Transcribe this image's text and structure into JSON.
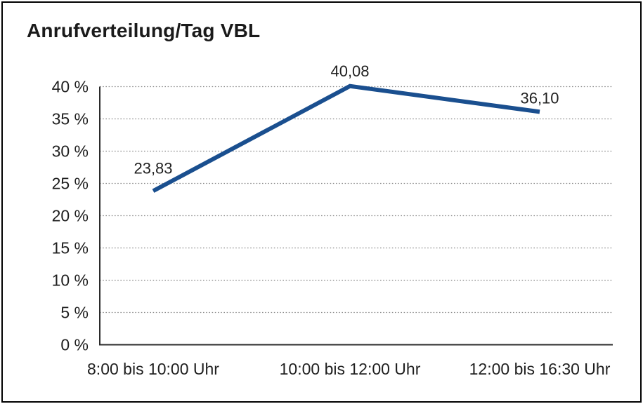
{
  "title": "Anrufverteilung/Tag VBL",
  "colors": {
    "line": "#1a4f8f",
    "axis": "#2b2b2b",
    "grid": "#8a8a8a",
    "text": "#1f1f1f",
    "border": "#000000",
    "background": "#ffffff"
  },
  "chart_data": {
    "type": "line",
    "title": "Anrufverteilung/Tag VBL",
    "categories": [
      "8:00 bis 10:00 Uhr",
      "10:00 bis 12:00 Uhr",
      "12:00 bis 16:30 Uhr"
    ],
    "values": [
      23.83,
      40.08,
      36.1
    ],
    "point_labels": [
      "23,83",
      "40,08",
      "36,10"
    ],
    "xlabel": "",
    "ylabel": "",
    "ylim": [
      0,
      40
    ],
    "y_tick_step": 5,
    "y_tick_labels": [
      "0 %",
      "5 %",
      "10 %",
      "15 %",
      "20 %",
      "25 %",
      "30 %",
      "35 %",
      "40 %"
    ],
    "grid": "horizontal-dotted",
    "legend": "none"
  }
}
